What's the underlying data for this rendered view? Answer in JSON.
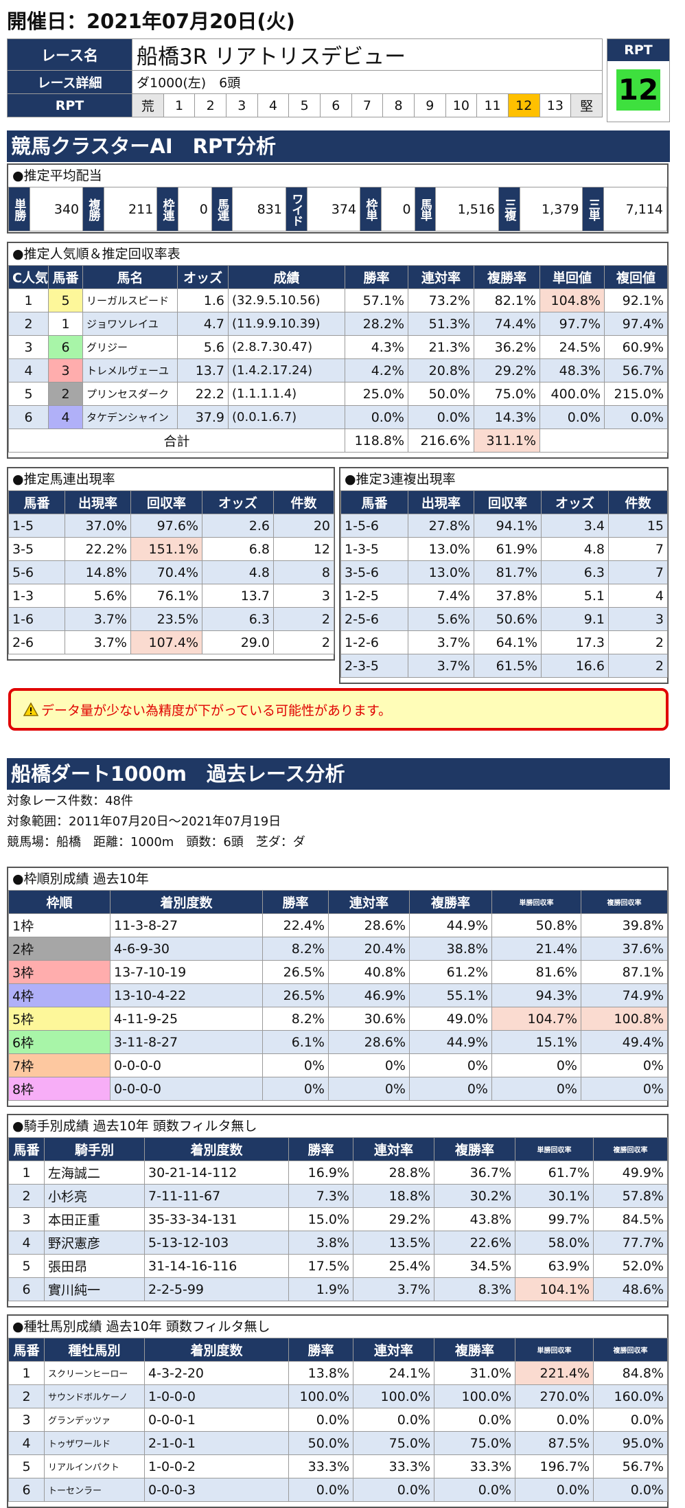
{
  "header": {
    "title": "開催日：2021年07月20日(火)"
  },
  "race": {
    "name_label": "レース名",
    "name": "船橋3R リアトリスデビュー",
    "detail_label": "レース詳細",
    "detail": "ダ1000(左)　6頭",
    "rpt_label": "RPT",
    "scale": [
      "荒",
      "1",
      "2",
      "3",
      "4",
      "5",
      "6",
      "7",
      "8",
      "9",
      "10",
      "11",
      "12",
      "13",
      "堅"
    ],
    "rpt_box_label": "RPT",
    "rpt_value": "12"
  },
  "ai": {
    "title": "競馬クラスターAI　RPT分析"
  },
  "payout": {
    "title": "●推定平均配当",
    "items": [
      {
        "label": "単勝",
        "value": "340"
      },
      {
        "label": "複勝",
        "value": "211"
      },
      {
        "label": "枠連",
        "value": "0"
      },
      {
        "label": "馬連",
        "value": "831"
      },
      {
        "label": "ワイド",
        "value": "374"
      },
      {
        "label": "枠単",
        "value": "0"
      },
      {
        "label": "馬単",
        "value": "1,516"
      },
      {
        "label": "三複",
        "value": "1,379"
      },
      {
        "label": "三単",
        "value": "7,114"
      }
    ]
  },
  "pop": {
    "title": "●推定人気順＆推定回収率表",
    "headers": [
      "C人気",
      "馬番",
      "馬名",
      "オッズ",
      "成績",
      "勝率",
      "連対率",
      "複勝率",
      "単回値",
      "複回値"
    ],
    "rows": [
      [
        "1",
        "5",
        "リーガルスピード",
        "1.6",
        "(32.9.5.10.56)",
        "57.1%",
        "73.2%",
        "82.1%",
        "104.8%",
        "92.1%"
      ],
      [
        "2",
        "1",
        "ジョワソレイユ",
        "4.7",
        "(11.9.9.10.39)",
        "28.2%",
        "51.3%",
        "74.4%",
        "97.7%",
        "97.4%"
      ],
      [
        "3",
        "6",
        "グリジー",
        "5.6",
        "(2.8.7.30.47)",
        "4.3%",
        "21.3%",
        "36.2%",
        "24.5%",
        "60.9%"
      ],
      [
        "4",
        "3",
        "トレメルヴェーユ",
        "13.7",
        "(1.4.2.17.24)",
        "4.2%",
        "20.8%",
        "29.2%",
        "48.3%",
        "56.7%"
      ],
      [
        "5",
        "2",
        "プリンセスダーク",
        "22.2",
        "(1.1.1.1.4)",
        "25.0%",
        "50.0%",
        "75.0%",
        "400.0%",
        "215.0%"
      ],
      [
        "6",
        "4",
        "タケデンシャイン",
        "37.9",
        "(0.0.1.6.7)",
        "0.0%",
        "0.0%",
        "14.3%",
        "0.0%",
        "0.0%"
      ]
    ],
    "total_label": "合計",
    "total": [
      "118.8%",
      "216.6%",
      "311.1%"
    ]
  },
  "umaren": {
    "title": "●推定馬連出現率",
    "headers": [
      "馬番",
      "出現率",
      "回収率",
      "オッズ",
      "件数"
    ],
    "rows": [
      [
        "1-5",
        "37.0%",
        "97.6%",
        "2.6",
        "20"
      ],
      [
        "3-5",
        "22.2%",
        "151.1%",
        "6.8",
        "12"
      ],
      [
        "5-6",
        "14.8%",
        "70.4%",
        "4.8",
        "8"
      ],
      [
        "1-3",
        "5.6%",
        "76.1%",
        "13.7",
        "3"
      ],
      [
        "1-6",
        "3.7%",
        "23.5%",
        "6.3",
        "2"
      ],
      [
        "2-6",
        "3.7%",
        "107.4%",
        "29.0",
        "2"
      ]
    ]
  },
  "sanren": {
    "title": "●推定3連複出現率",
    "headers": [
      "馬番",
      "出現率",
      "回収率",
      "オッズ",
      "件数"
    ],
    "rows": [
      [
        "1-5-6",
        "27.8%",
        "94.1%",
        "3.4",
        "15"
      ],
      [
        "1-3-5",
        "13.0%",
        "61.9%",
        "4.8",
        "7"
      ],
      [
        "3-5-6",
        "13.0%",
        "81.7%",
        "6.3",
        "7"
      ],
      [
        "1-2-5",
        "7.4%",
        "37.8%",
        "5.1",
        "4"
      ],
      [
        "2-5-6",
        "5.6%",
        "50.6%",
        "9.1",
        "3"
      ],
      [
        "1-2-6",
        "3.7%",
        "64.1%",
        "17.3",
        "2"
      ],
      [
        "2-3-5",
        "3.7%",
        "61.5%",
        "16.6",
        "2"
      ]
    ]
  },
  "warning": {
    "icon": "warning-icon",
    "text": "データ量が少ない為精度が下がっている可能性があります。"
  },
  "past": {
    "title": "船橋ダート1000m　過去レース分析",
    "lines": [
      "対象レース件数：48件",
      "対象範囲：2011年07月20日～2021年07月19日",
      "競馬場：船橋　距離：1000m　頭数：6頭　芝ダ：ダ"
    ]
  },
  "waku": {
    "title": "●枠順別成績 過去10年",
    "headers": [
      "枠順",
      "着別度数",
      "勝率",
      "連対率",
      "複勝率",
      "単勝回収率",
      "複勝回収率"
    ],
    "rows": [
      [
        "1枠",
        "11-3-8-27",
        "22.4%",
        "28.6%",
        "44.9%",
        "50.8%",
        "39.8%"
      ],
      [
        "2枠",
        "4-6-9-30",
        "8.2%",
        "20.4%",
        "38.8%",
        "21.4%",
        "37.6%"
      ],
      [
        "3枠",
        "13-7-10-19",
        "26.5%",
        "40.8%",
        "61.2%",
        "81.6%",
        "87.1%"
      ],
      [
        "4枠",
        "13-10-4-22",
        "26.5%",
        "46.9%",
        "55.1%",
        "94.3%",
        "74.9%"
      ],
      [
        "5枠",
        "4-11-9-25",
        "8.2%",
        "30.6%",
        "49.0%",
        "104.7%",
        "100.8%"
      ],
      [
        "6枠",
        "3-11-8-27",
        "6.1%",
        "28.6%",
        "44.9%",
        "15.1%",
        "49.4%"
      ],
      [
        "7枠",
        "0-0-0-0",
        "0%",
        "0%",
        "0%",
        "0%",
        "0%"
      ],
      [
        "8枠",
        "0-0-0-0",
        "0%",
        "0%",
        "0%",
        "0%",
        "0%"
      ]
    ],
    "colors": [
      "#ffffff",
      "#a6a6a6",
      "#ffadad",
      "#b0b0f8",
      "#fdf79a",
      "#a8f5a8",
      "#fdc8a0",
      "#f7aef7"
    ]
  },
  "jockey": {
    "title": "●騎手別成績 過去10年 頭数フィルタ無し",
    "headers": [
      "馬番",
      "騎手別",
      "着別度数",
      "勝率",
      "連対率",
      "複勝率",
      "単勝回収率",
      "複勝回収率"
    ],
    "rows": [
      [
        "1",
        "左海誠二",
        "30-21-14-112",
        "16.9%",
        "28.8%",
        "36.7%",
        "61.7%",
        "49.9%"
      ],
      [
        "2",
        "小杉亮",
        "7-11-11-67",
        "7.3%",
        "18.8%",
        "30.2%",
        "30.1%",
        "57.8%"
      ],
      [
        "3",
        "本田正重",
        "35-33-34-131",
        "15.0%",
        "29.2%",
        "43.8%",
        "99.7%",
        "84.5%"
      ],
      [
        "4",
        "野沢憲彦",
        "5-13-12-103",
        "3.8%",
        "13.5%",
        "22.6%",
        "58.0%",
        "77.7%"
      ],
      [
        "5",
        "張田昂",
        "31-14-16-116",
        "17.5%",
        "25.4%",
        "34.5%",
        "63.9%",
        "52.0%"
      ],
      [
        "6",
        "實川純一",
        "2-2-5-99",
        "1.9%",
        "3.7%",
        "8.3%",
        "104.1%",
        "48.6%"
      ]
    ]
  },
  "sire": {
    "title": "●種牡馬別成績 過去10年 頭数フィルタ無し",
    "headers": [
      "馬番",
      "種牡馬別",
      "着別度数",
      "勝率",
      "連対率",
      "複勝率",
      "単勝回収率",
      "複勝回収率"
    ],
    "rows": [
      [
        "1",
        "スクリーンヒーロー",
        "4-3-2-20",
        "13.8%",
        "24.1%",
        "31.0%",
        "221.4%",
        "84.8%"
      ],
      [
        "2",
        "サウンドボルケーノ",
        "1-0-0-0",
        "100.0%",
        "100.0%",
        "100.0%",
        "270.0%",
        "160.0%"
      ],
      [
        "3",
        "グランデッツァ",
        "0-0-0-1",
        "0.0%",
        "0.0%",
        "0.0%",
        "0.0%",
        "0.0%"
      ],
      [
        "4",
        "トゥザワールド",
        "2-1-0-1",
        "50.0%",
        "75.0%",
        "75.0%",
        "87.5%",
        "95.0%"
      ],
      [
        "5",
        "リアルインパクト",
        "1-0-0-2",
        "33.3%",
        "33.3%",
        "33.3%",
        "196.7%",
        "56.7%"
      ],
      [
        "6",
        "トーセンラー",
        "0-0-0-3",
        "0.0%",
        "0.0%",
        "0.0%",
        "0.0%",
        "0.0%"
      ]
    ]
  }
}
